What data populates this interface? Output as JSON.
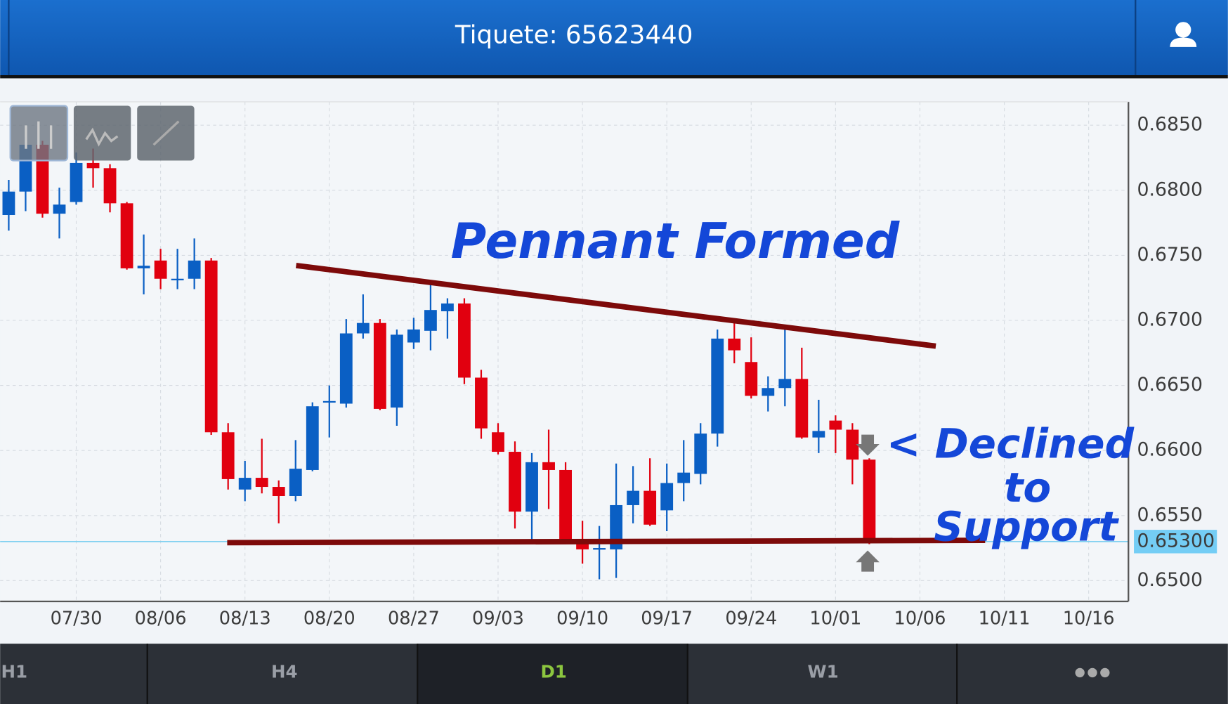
{
  "header": {
    "title": "Tiquete: 65623440"
  },
  "chart_data": {
    "type": "candlestick",
    "categories": [
      null,
      null,
      null,
      null,
      "07/30",
      null,
      null,
      null,
      null,
      "08/06",
      null,
      null,
      null,
      null,
      "08/13",
      null,
      null,
      null,
      null,
      "08/20",
      null,
      null,
      null,
      null,
      "08/27",
      null,
      null,
      null,
      null,
      "09/03",
      null,
      null,
      null,
      null,
      "09/10",
      null,
      null,
      null,
      null,
      "09/17",
      null,
      null,
      null,
      null,
      "09/24",
      null,
      null,
      null,
      null,
      "10/01",
      null,
      null,
      null,
      null,
      "10/06",
      null,
      null,
      null,
      null,
      "10/11",
      null,
      null,
      null,
      null,
      "10/16"
    ],
    "open": [
      0.6781,
      0.6799,
      0.6835,
      0.6782,
      0.6791,
      0.6821,
      0.6817,
      0.679,
      0.674,
      0.6746,
      0.6731,
      0.6732,
      0.6746,
      0.6614,
      0.657,
      0.6579,
      0.6572,
      0.6565,
      0.6585,
      0.6637,
      0.6636,
      0.669,
      0.6698,
      0.6633,
      0.6683,
      0.6692,
      0.6707,
      0.6713,
      0.6656,
      0.6614,
      0.6599,
      0.6553,
      0.6591,
      0.6585,
      0.6532,
      0.6524,
      0.6524,
      0.6558,
      0.6569,
      0.6554,
      0.6575,
      0.6582,
      0.6613,
      0.6686,
      0.6668,
      0.6642,
      0.6648,
      0.6655,
      0.661,
      0.6623,
      0.6616,
      0.6593,
      null,
      null,
      null,
      null,
      null,
      null,
      null,
      null,
      null,
      null,
      null,
      null,
      null
    ],
    "high": [
      0.6808,
      0.6841,
      0.6838,
      0.6802,
      0.6829,
      0.6832,
      0.682,
      0.6791,
      0.6766,
      0.6755,
      0.6755,
      0.6763,
      0.6748,
      0.6621,
      0.6592,
      0.6609,
      0.6577,
      0.6608,
      0.6637,
      0.665,
      0.6701,
      0.672,
      0.6701,
      0.6693,
      0.6702,
      0.6728,
      0.6717,
      0.6717,
      0.6662,
      0.6621,
      0.6607,
      0.6598,
      0.6616,
      0.6591,
      0.6546,
      0.6542,
      0.659,
      0.6588,
      0.6594,
      0.659,
      0.6608,
      0.6621,
      0.6693,
      0.6698,
      0.6687,
      0.6657,
      0.6693,
      0.6679,
      0.6639,
      0.6627,
      0.6621,
      0.6594,
      null,
      null,
      null,
      null,
      null,
      null,
      null,
      null,
      null,
      null,
      null,
      null,
      null
    ],
    "low": [
      0.6769,
      0.6784,
      0.6779,
      0.6763,
      0.6789,
      0.6802,
      0.6783,
      0.6739,
      0.672,
      0.6724,
      0.6724,
      0.6724,
      0.6612,
      0.657,
      0.6561,
      0.6567,
      0.6544,
      0.6561,
      0.6584,
      0.661,
      0.6633,
      0.6686,
      0.6631,
      0.6619,
      0.6678,
      0.6677,
      0.6686,
      0.6651,
      0.6609,
      0.6597,
      0.654,
      0.6531,
      0.6555,
      0.6529,
      0.6513,
      0.6501,
      0.6502,
      0.6544,
      0.6542,
      0.6538,
      0.6561,
      0.6574,
      0.6603,
      0.6667,
      0.664,
      0.663,
      0.6634,
      0.6609,
      0.6598,
      0.6598,
      0.6574,
      0.6528,
      null,
      null,
      null,
      null,
      null,
      null,
      null,
      null,
      null,
      null,
      null,
      null,
      null
    ],
    "close": [
      0.6799,
      0.6835,
      0.6782,
      0.6789,
      0.6821,
      0.6817,
      0.679,
      0.674,
      0.6742,
      0.6732,
      0.6732,
      0.6746,
      0.6614,
      0.6578,
      0.6579,
      0.6572,
      0.6565,
      0.6586,
      0.6634,
      0.6638,
      0.669,
      0.6698,
      0.6632,
      0.6689,
      0.6693,
      0.6708,
      0.6713,
      0.6656,
      0.6617,
      0.6599,
      0.6553,
      0.6591,
      0.6585,
      0.6532,
      0.6524,
      0.6525,
      0.6558,
      0.6569,
      0.6543,
      0.6575,
      0.6583,
      0.6613,
      0.6686,
      0.6677,
      0.6642,
      0.6648,
      0.6655,
      0.661,
      0.6615,
      0.6616,
      0.6593,
      0.653,
      null,
      null,
      null,
      null,
      null,
      null,
      null,
      null,
      null,
      null,
      null,
      null,
      null
    ],
    "up_color": "#0a5fc4",
    "down_color": "#e1000f",
    "ylim": [
      0.6484,
      0.6868
    ],
    "yticks": [
      {
        "value": 0.685,
        "label": "0.6850"
      },
      {
        "value": 0.68,
        "label": "0.6800"
      },
      {
        "value": 0.675,
        "label": "0.6750"
      },
      {
        "value": 0.67,
        "label": "0.6700"
      },
      {
        "value": 0.665,
        "label": "0.6650"
      },
      {
        "value": 0.66,
        "label": "0.6600"
      },
      {
        "value": 0.655,
        "label": "0.6550"
      },
      {
        "value": 0.65,
        "label": "0.6500"
      }
    ],
    "grid": true,
    "last_price": {
      "value": 0.653,
      "label": "0.65300"
    },
    "annotations": [
      "Pennant Formed",
      "< Declined",
      "to",
      "Support"
    ]
  },
  "tabs": [
    "H1",
    "H4",
    "D1",
    "W1"
  ]
}
